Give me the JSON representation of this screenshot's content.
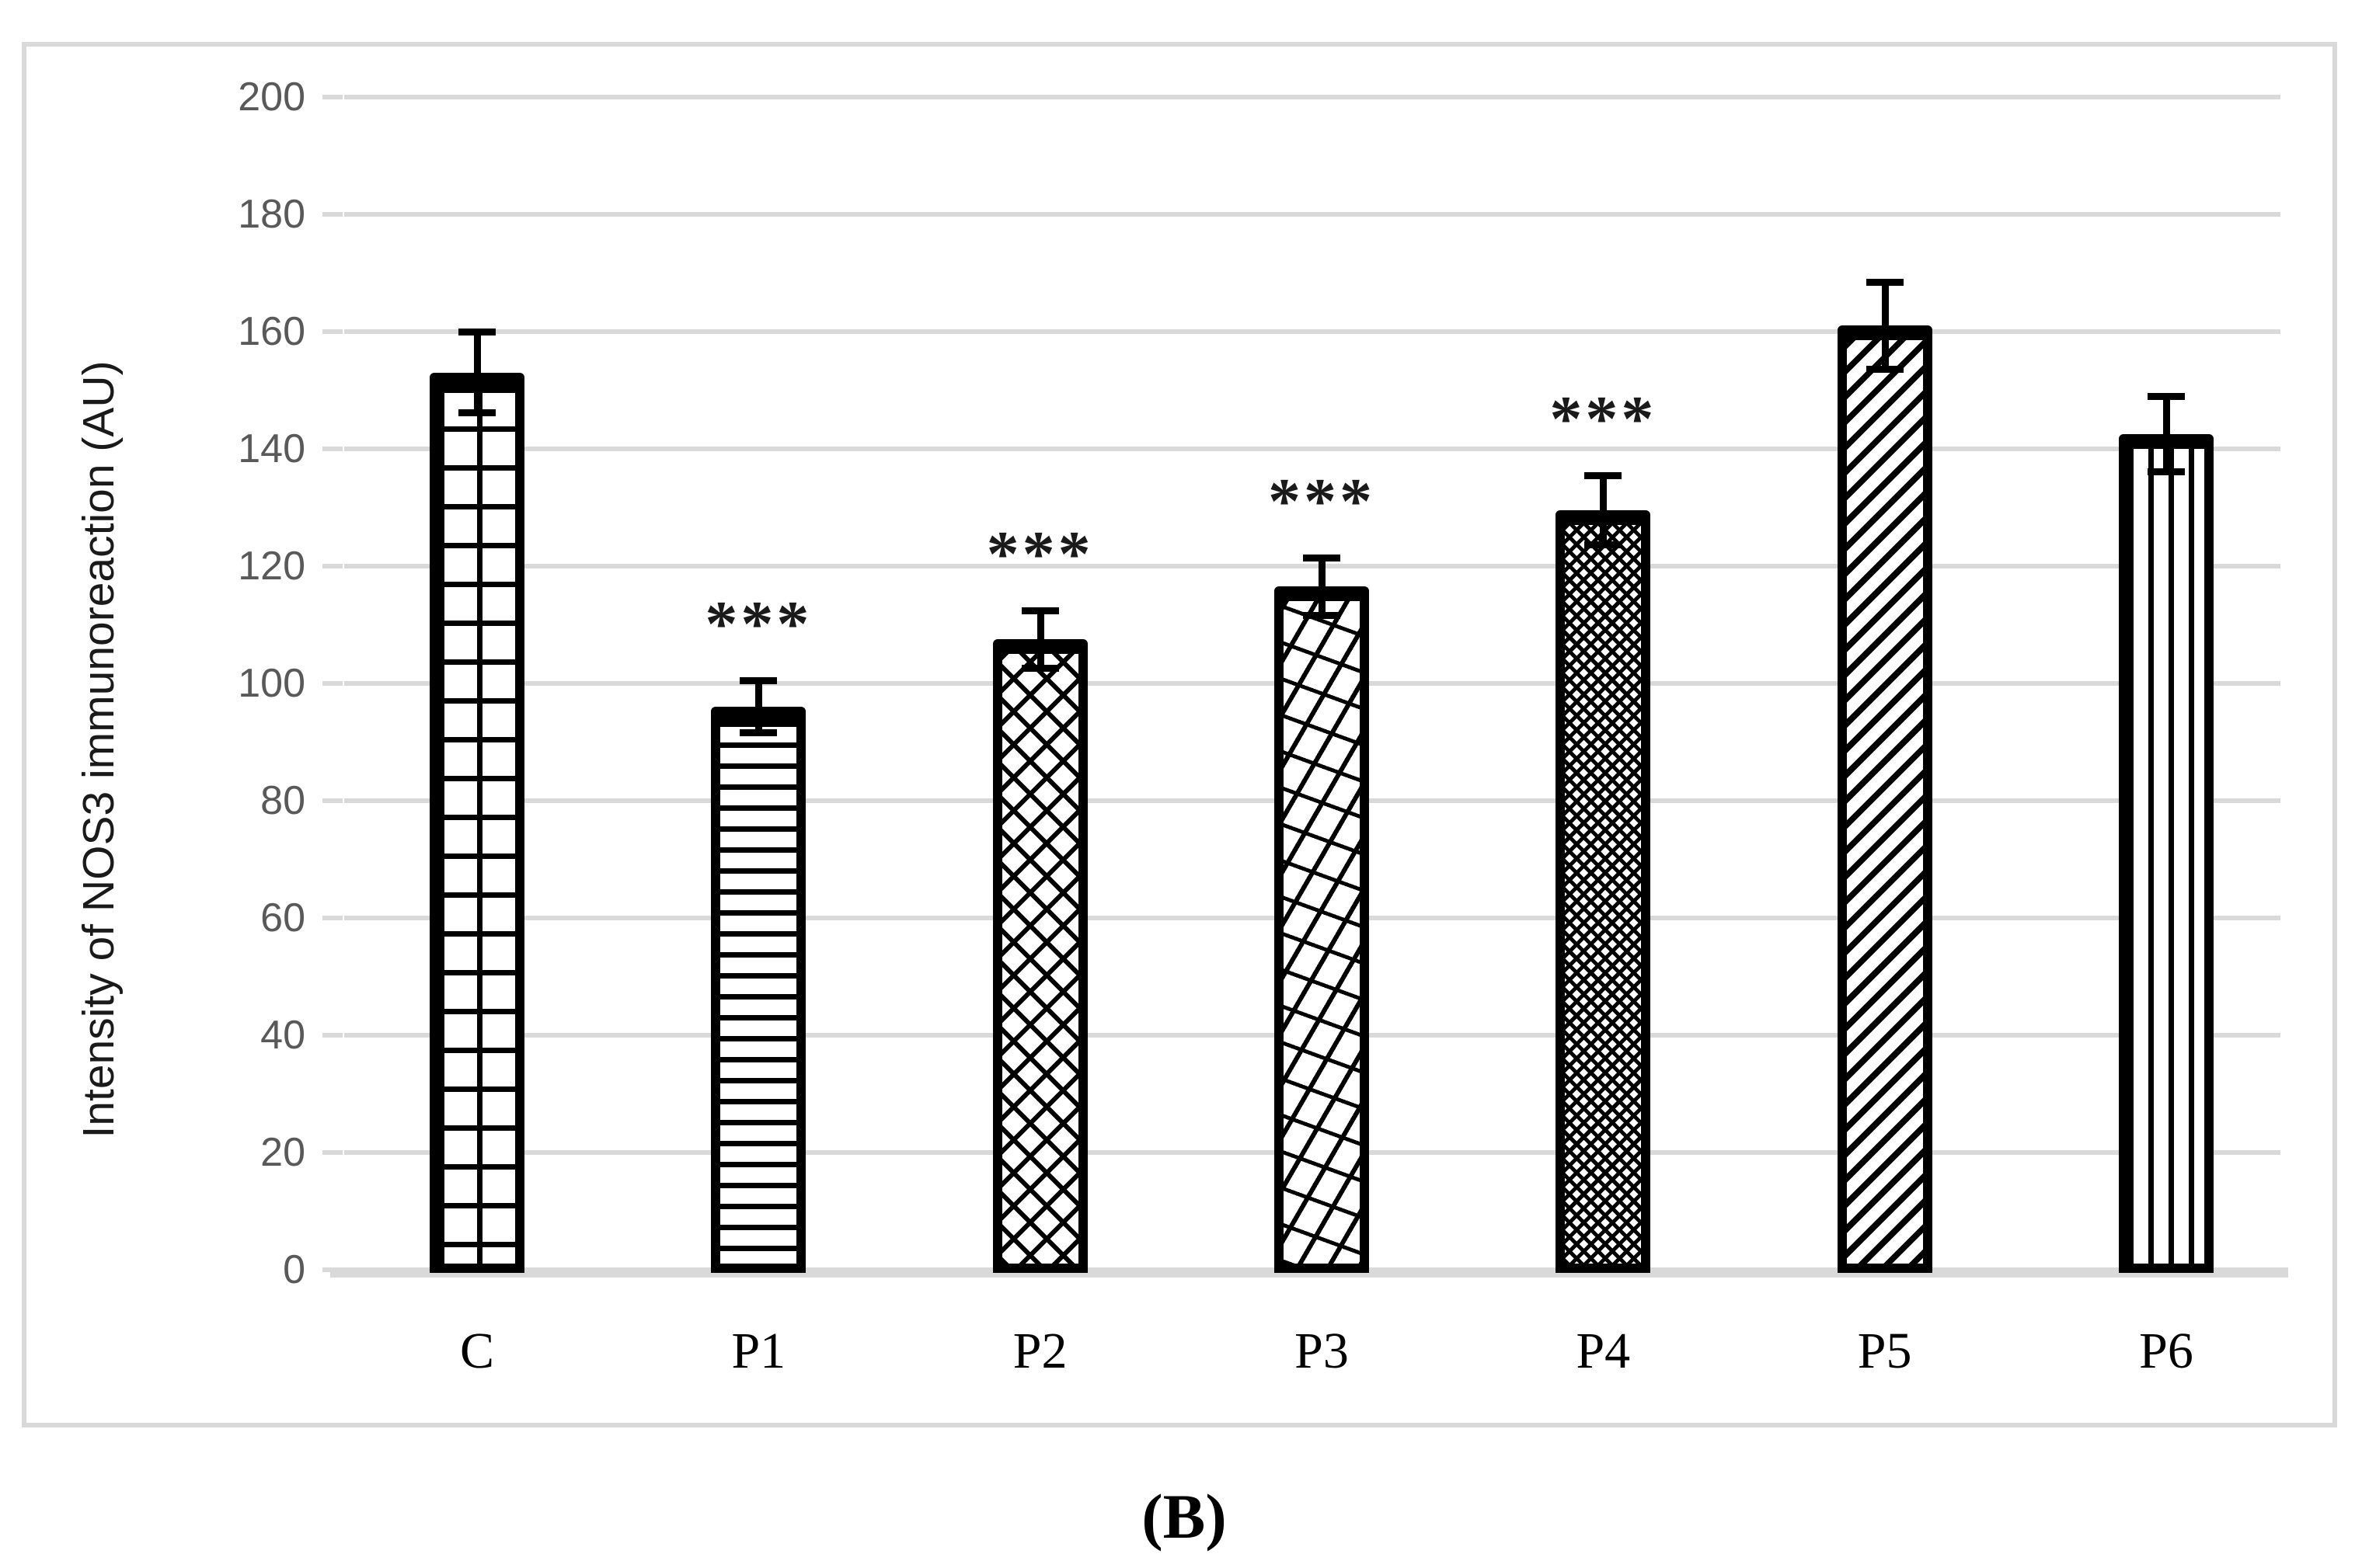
{
  "figure": {
    "caption": "(B)"
  },
  "colors": {
    "bar_outline": "#000000",
    "gridline": "#d9d9d9",
    "panel_border": "#d9d9d9",
    "ytick_label": "#595959",
    "text": "#1a1a1a"
  },
  "chart_data": {
    "type": "bar",
    "title": "",
    "xlabel": "",
    "ylabel": "Intensity of NOS3 immunoreaction (AU)",
    "ylim": [
      0,
      200
    ],
    "ytick_step": 20,
    "ytick_labels": [
      "0",
      "20",
      "40",
      "60",
      "80",
      "100",
      "120",
      "140",
      "160",
      "180",
      "200"
    ],
    "grid": "horizontal",
    "legend": "none",
    "categories": [
      "C",
      "P1",
      "P2",
      "P3",
      "P4",
      "P5",
      "P6"
    ],
    "values": [
      153,
      96,
      107.5,
      116.5,
      129.5,
      161,
      142.5
    ],
    "errors": [
      7.5,
      5,
      5.5,
      5.5,
      6.5,
      8,
      7
    ],
    "significance": [
      "",
      "***",
      "***",
      "***",
      "***",
      "",
      ""
    ],
    "patterns": [
      "grid",
      "horizontal-lines",
      "diamond-lattice",
      "diagonal-weave",
      "zigzag-dense",
      "diagonal-stripes",
      "vertical-lines"
    ]
  }
}
